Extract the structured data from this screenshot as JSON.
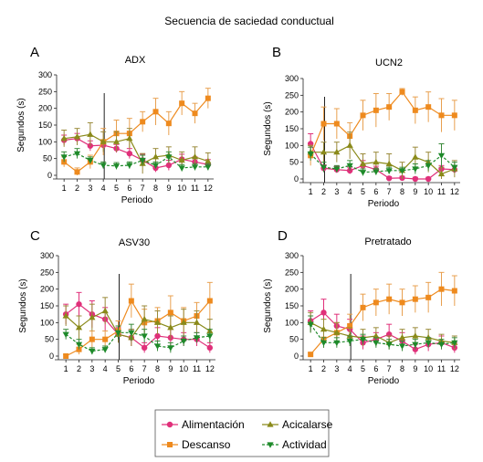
{
  "title": "Secuencia de saciedad conductual",
  "colors": {
    "Alimentación": "#e0307a",
    "Descanso": "#ee8a1e",
    "Acicalarse": "#8a8a1a",
    "Actividad": "#1e8a2a",
    "errorbar_alimentacion": "#e0307a",
    "errorbar_descanso": "#e8a050",
    "errorbar_acicalarse": "#9a8a3a",
    "errorbar_actividad": "#3a8a3a"
  },
  "legend": [
    {
      "name": "Alimentación",
      "marker": "circle"
    },
    {
      "name": "Acicalarse",
      "marker": "triangle-up"
    },
    {
      "name": "Descanso",
      "marker": "square"
    },
    {
      "name": "Actividad",
      "marker": "triangle-down"
    }
  ],
  "chart_data": [
    {
      "type": "line",
      "letter": "A",
      "title": "ADX",
      "xlabel": "Periodo",
      "ylabel": "Segundos (s)",
      "x": [
        1,
        2,
        3,
        4,
        5,
        6,
        7,
        8,
        9,
        10,
        11,
        12
      ],
      "ylim": [
        0,
        300
      ],
      "yticks": [
        0,
        50,
        100,
        150,
        200,
        250,
        300
      ],
      "vline_x": 4,
      "series": [
        {
          "name": "Alimentación",
          "values": [
            105,
            110,
            88,
            90,
            80,
            65,
            45,
            22,
            30,
            48,
            40,
            32
          ],
          "err": [
            15,
            15,
            15,
            12,
            12,
            15,
            18,
            12,
            15,
            15,
            15,
            15
          ]
        },
        {
          "name": "Descanso",
          "values": [
            40,
            10,
            40,
            100,
            125,
            125,
            160,
            190,
            155,
            215,
            185,
            230
          ],
          "err": [
            15,
            12,
            20,
            40,
            40,
            45,
            30,
            40,
            35,
            35,
            30,
            30
          ]
        },
        {
          "name": "Acicalarse",
          "values": [
            110,
            115,
            122,
            100,
            100,
            110,
            35,
            55,
            60,
            45,
            55,
            42
          ],
          "err": [
            25,
            25,
            35,
            30,
            30,
            30,
            30,
            25,
            25,
            25,
            30,
            25
          ]
        },
        {
          "name": "Actividad",
          "values": [
            55,
            65,
            45,
            30,
            28,
            30,
            45,
            30,
            55,
            22,
            25,
            25
          ],
          "err": [
            15,
            15,
            10,
            10,
            10,
            10,
            15,
            10,
            15,
            10,
            10,
            10
          ]
        }
      ]
    },
    {
      "type": "line",
      "letter": "B",
      "title": "UCN2",
      "xlabel": "Periodo",
      "ylabel": "Segundos (s)",
      "x": [
        1,
        2,
        3,
        4,
        5,
        6,
        7,
        8,
        9,
        10,
        11,
        12
      ],
      "ylim": [
        0,
        300
      ],
      "yticks": [
        0,
        50,
        100,
        150,
        200,
        250,
        300
      ],
      "vline_x": 2,
      "series": [
        {
          "name": "Alimentación",
          "values": [
            105,
            32,
            28,
            25,
            40,
            28,
            2,
            3,
            0,
            0,
            30,
            28
          ],
          "err": [
            30,
            10,
            10,
            10,
            15,
            10,
            5,
            5,
            5,
            5,
            10,
            10
          ]
        },
        {
          "name": "Descanso",
          "values": [
            70,
            165,
            165,
            128,
            190,
            205,
            215,
            260,
            205,
            215,
            190,
            190
          ],
          "err": [
            30,
            50,
            45,
            40,
            45,
            50,
            40,
            10,
            40,
            45,
            50,
            45
          ]
        },
        {
          "name": "Acicalarse",
          "values": [
            80,
            80,
            80,
            100,
            45,
            50,
            45,
            25,
            65,
            50,
            15,
            30
          ],
          "err": [
            20,
            30,
            30,
            40,
            30,
            30,
            30,
            25,
            30,
            30,
            20,
            25
          ]
        },
        {
          "name": "Actividad",
          "values": [
            75,
            35,
            30,
            40,
            20,
            22,
            25,
            25,
            30,
            40,
            70,
            35
          ],
          "err": [
            20,
            15,
            10,
            15,
            10,
            10,
            10,
            10,
            15,
            15,
            35,
            15
          ]
        }
      ]
    },
    {
      "type": "line",
      "letter": "C",
      "title": "ASV30",
      "xlabel": "Periodo",
      "ylabel": "Segundos (s)",
      "x": [
        1,
        2,
        3,
        4,
        5,
        6,
        7,
        8,
        9,
        10,
        11,
        12
      ],
      "ylim": [
        0,
        300
      ],
      "yticks": [
        0,
        50,
        100,
        150,
        200,
        250,
        300
      ],
      "vline_x": 5,
      "series": [
        {
          "name": "Alimentación",
          "values": [
            125,
            155,
            125,
            110,
            65,
            55,
            25,
            60,
            55,
            50,
            50,
            25
          ],
          "err": [
            30,
            35,
            40,
            35,
            20,
            25,
            15,
            25,
            25,
            20,
            20,
            15
          ]
        },
        {
          "name": "Descanso",
          "values": [
            0,
            20,
            50,
            50,
            75,
            165,
            100,
            105,
            130,
            105,
            120,
            165
          ],
          "err": [
            5,
            15,
            25,
            25,
            30,
            50,
            40,
            40,
            50,
            40,
            40,
            55
          ]
        },
        {
          "name": "Acicalarse",
          "values": [
            120,
            85,
            115,
            135,
            65,
            55,
            110,
            100,
            85,
            100,
            100,
            75
          ],
          "err": [
            30,
            35,
            40,
            40,
            25,
            25,
            40,
            35,
            35,
            40,
            35,
            35
          ]
        },
        {
          "name": "Actividad",
          "values": [
            65,
            35,
            15,
            20,
            70,
            70,
            60,
            30,
            25,
            45,
            55,
            60
          ],
          "err": [
            15,
            15,
            10,
            10,
            20,
            25,
            20,
            15,
            15,
            15,
            15,
            20
          ]
        }
      ]
    },
    {
      "type": "line",
      "letter": "D",
      "title": "Pretratado",
      "xlabel": "Periodo",
      "ylabel": "Segundos (s)",
      "x": [
        1,
        2,
        3,
        4,
        5,
        6,
        7,
        8,
        9,
        10,
        11,
        12
      ],
      "ylim": [
        0,
        300
      ],
      "yticks": [
        0,
        50,
        100,
        150,
        200,
        250,
        300
      ],
      "vline_x": 4,
      "series": [
        {
          "name": "Alimentación",
          "values": [
            105,
            130,
            90,
            80,
            40,
            50,
            65,
            45,
            20,
            35,
            40,
            25
          ],
          "err": [
            30,
            40,
            35,
            30,
            20,
            20,
            30,
            25,
            15,
            20,
            20,
            15
          ]
        },
        {
          "name": "Descanso",
          "values": [
            5,
            50,
            70,
            90,
            145,
            160,
            170,
            160,
            170,
            175,
            200,
            195
          ],
          "err": [
            5,
            25,
            30,
            35,
            40,
            40,
            45,
            40,
            40,
            45,
            50,
            45
          ]
        },
        {
          "name": "Acicalarse",
          "values": [
            100,
            80,
            70,
            60,
            55,
            60,
            40,
            55,
            60,
            55,
            45,
            40
          ],
          "err": [
            30,
            30,
            30,
            25,
            25,
            25,
            20,
            25,
            25,
            25,
            20,
            20
          ]
        },
        {
          "name": "Actividad",
          "values": [
            95,
            40,
            40,
            45,
            50,
            40,
            35,
            30,
            35,
            40,
            35,
            40
          ],
          "err": [
            25,
            15,
            15,
            15,
            15,
            15,
            15,
            15,
            15,
            15,
            15,
            15
          ]
        }
      ]
    }
  ]
}
